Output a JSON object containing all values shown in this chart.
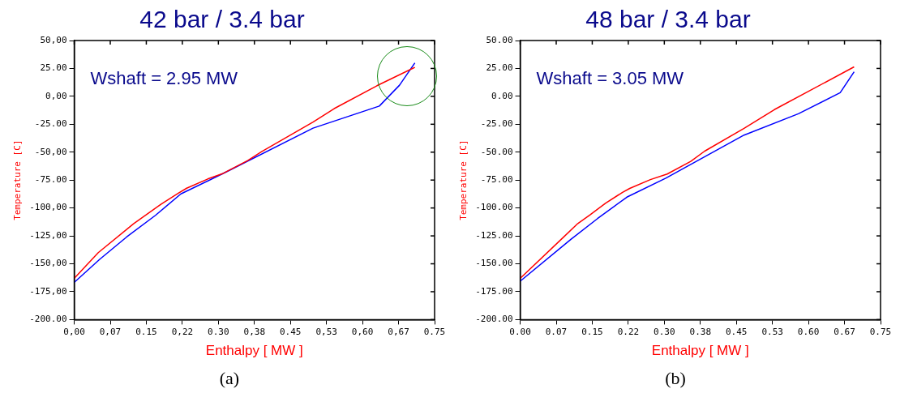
{
  "chart_data": [
    {
      "type": "line",
      "title": "42 bar / 3.4 bar",
      "xlabel": "Enthalpy [ MW ]",
      "ylabel": "Temperature [C]",
      "annotations": [
        "Wshaft = 2.95 MW",
        "(a)"
      ],
      "marker": "none",
      "grid": false,
      "legend": false,
      "xlim": [
        0,
        0.75
      ],
      "xticks": [
        {
          "value": 0,
          "label": "0,00"
        },
        {
          "value": 0.075,
          "label": "0,07"
        },
        {
          "value": 0.15,
          "label": "0.15"
        },
        {
          "value": 0.225,
          "label": "0,22"
        },
        {
          "value": 0.3,
          "label": "0.30"
        },
        {
          "value": 0.375,
          "label": "0,38"
        },
        {
          "value": 0.45,
          "label": "0.45"
        },
        {
          "value": 0.525,
          "label": "0,53"
        },
        {
          "value": 0.6,
          "label": "0,60"
        },
        {
          "value": 0.675,
          "label": "0,67"
        },
        {
          "value": 0.75,
          "label": "0.75"
        }
      ],
      "ylim": [
        -200,
        50
      ],
      "yticks": [
        {
          "value": 50,
          "label": "50,00"
        },
        {
          "value": 25,
          "label": "25.00"
        },
        {
          "value": 0,
          "label": "0,00"
        },
        {
          "value": -25,
          "label": "-25.00"
        },
        {
          "value": -50,
          "label": "-50,00"
        },
        {
          "value": -75,
          "label": "-75.00"
        },
        {
          "value": -100,
          "label": "-100,00"
        },
        {
          "value": -125,
          "label": "-125,00"
        },
        {
          "value": -150,
          "label": "-150,00"
        },
        {
          "value": -175,
          "label": "-175,00"
        },
        {
          "value": -200,
          "label": "-200.00"
        }
      ],
      "series": [
        {
          "color": "#ff0000",
          "x": [
            0,
            0.05,
            0.124,
            0.181,
            0.216,
            0.234,
            0.278,
            0.31,
            0.361,
            0.39,
            0.497,
            0.541,
            0.63,
            0.709
          ],
          "values": [
            -163,
            -140,
            -114,
            -96.5,
            -87,
            -82.3,
            -74,
            -69,
            -57.5,
            -49.5,
            -23,
            -11,
            9.5,
            26
          ]
        },
        {
          "color": "#0000ff",
          "x": [
            0,
            0.053,
            0.109,
            0.169,
            0.222,
            0.317,
            0.497,
            0.635,
            0.677,
            0.709
          ],
          "values": [
            -166.7,
            -146,
            -126,
            -106.6,
            -87.4,
            -67.6,
            -28.5,
            -8.7,
            10,
            30
          ]
        }
      ]
    },
    {
      "type": "line",
      "title": "48 bar / 3.4 bar",
      "xlabel": "Enthalpy [ MW ]",
      "ylabel": "Temperature [C]",
      "annotations": [
        "Wshaft = 3.05 MW",
        "(b)"
      ],
      "marker": "none",
      "grid": false,
      "legend": false,
      "xlim": [
        0,
        0.75
      ],
      "xticks": [
        {
          "value": 0,
          "label": "0.00"
        },
        {
          "value": 0.075,
          "label": "0.07"
        },
        {
          "value": 0.15,
          "label": "0.15"
        },
        {
          "value": 0.225,
          "label": "0.22"
        },
        {
          "value": 0.3,
          "label": "0.30"
        },
        {
          "value": 0.375,
          "label": "0.38"
        },
        {
          "value": 0.45,
          "label": "0.45"
        },
        {
          "value": 0.525,
          "label": "0.53"
        },
        {
          "value": 0.6,
          "label": "0.60"
        },
        {
          "value": 0.675,
          "label": "0.67"
        },
        {
          "value": 0.75,
          "label": "0.75"
        }
      ],
      "ylim": [
        -200,
        50
      ],
      "yticks": [
        {
          "value": 50,
          "label": "50.00"
        },
        {
          "value": 25,
          "label": "25.00"
        },
        {
          "value": 0,
          "label": "0.00"
        },
        {
          "value": -25,
          "label": "-25.00"
        },
        {
          "value": -50,
          "label": "-50.00"
        },
        {
          "value": -75,
          "label": "-75.00"
        },
        {
          "value": -100,
          "label": "-100.00"
        },
        {
          "value": -125,
          "label": "-125.00"
        },
        {
          "value": -150,
          "label": "-150.00"
        },
        {
          "value": -175,
          "label": "-175.00"
        },
        {
          "value": -200,
          "label": "-200.00"
        }
      ],
      "series": [
        {
          "color": "#ff0000",
          "x": [
            0,
            0.088,
            0.12,
            0.146,
            0.178,
            0.213,
            0.228,
            0.271,
            0.306,
            0.355,
            0.384,
            0.466,
            0.529,
            0.695
          ],
          "values": [
            -163,
            -127,
            -113.9,
            -106,
            -95.6,
            -86,
            -82.5,
            -74.6,
            -69.6,
            -58.3,
            -49.1,
            -28.7,
            -11.9,
            26.4
          ]
        },
        {
          "color": "#0000ff",
          "x": [
            0,
            0.106,
            0.161,
            0.222,
            0.303,
            0.466,
            0.579,
            0.666,
            0.695
          ],
          "values": [
            -165.6,
            -127.9,
            -109.5,
            -90.3,
            -73.3,
            -34.7,
            -15.6,
            3.3,
            22
          ]
        }
      ]
    }
  ]
}
